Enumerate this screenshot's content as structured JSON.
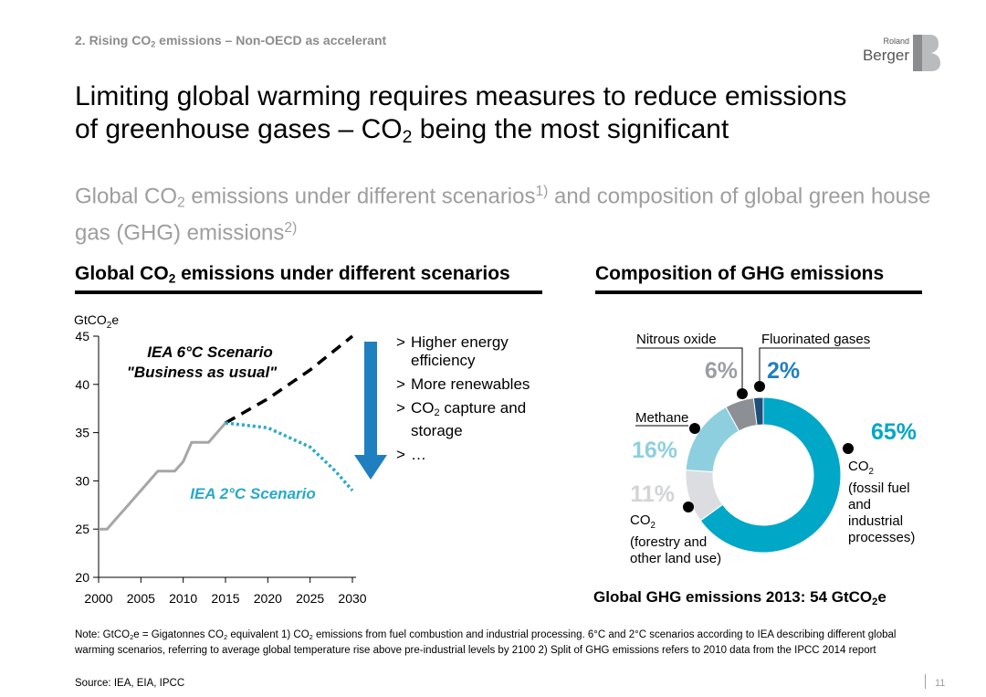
{
  "header": {
    "section_pre": "2. Rising CO",
    "section_sub": "2",
    "section_post": " emissions – Non-OECD as accelerant",
    "logo_line1": "Roland",
    "logo_line2": "Berger",
    "title_line1": "Limiting global warming requires measures to reduce emissions",
    "title_line2_pre": "of greenhouse gases – CO",
    "title_line2_sub": "2",
    "title_line2_post": " being the most significant",
    "subtitle_pre": "Global CO",
    "subtitle_sub": "2",
    "subtitle_mid": " emissions under different scenarios",
    "subtitle_sup1": "1)",
    "subtitle_post": " and composition of global green house gas (GHG) emissions",
    "subtitle_sup2": "2)"
  },
  "left_panel": {
    "title_pre": "Global CO",
    "title_sub": "2",
    "title_post": " emissions under different scenarios",
    "bullets": [
      {
        "marker": ">",
        "pre": "Higher energy efficiency",
        "sub": "",
        "post": ""
      },
      {
        "marker": ">",
        "pre": "More renewables",
        "sub": "",
        "post": ""
      },
      {
        "marker": ">",
        "pre": "CO",
        "sub": "2",
        "post": " capture and storage"
      },
      {
        "marker": ">",
        "pre": "…",
        "sub": "",
        "post": ""
      }
    ]
  },
  "right_panel": {
    "title": "Composition of GHG emissions",
    "total_pre": "Global GHG emissions 2013: 54 GtCO",
    "total_sub": "2",
    "total_post": "e"
  },
  "chart_data": [
    {
      "type": "line",
      "ylabel_pre": "GtCO",
      "ylabel_sub": "2",
      "ylabel_post": "e",
      "xlim": [
        2000,
        2030
      ],
      "ylim": [
        20,
        45
      ],
      "xticks": [
        2000,
        2005,
        2010,
        2015,
        2020,
        2025,
        2030
      ],
      "yticks": [
        20,
        25,
        30,
        35,
        40,
        45
      ],
      "series": [
        {
          "style": "solid",
          "color": "#a6a6a6",
          "points": [
            [
              2000,
              25
            ],
            [
              2001,
              25
            ],
            [
              2002,
              26
            ],
            [
              2003,
              27
            ],
            [
              2004,
              28
            ],
            [
              2005,
              29
            ],
            [
              2006,
              30
            ],
            [
              2007,
              31
            ],
            [
              2008,
              31
            ],
            [
              2009,
              31
            ],
            [
              2010,
              32
            ],
            [
              2011,
              34
            ],
            [
              2012,
              34
            ],
            [
              2013,
              34
            ],
            [
              2014,
              35
            ],
            [
              2015,
              36
            ]
          ]
        },
        {
          "name": "IEA 6°C Scenario \"Business as usual\"",
          "style": "dashed",
          "color": "#000000",
          "points": [
            [
              2015,
              36
            ],
            [
              2020,
              38.5
            ],
            [
              2025,
              41.5
            ],
            [
              2030,
              45
            ]
          ]
        },
        {
          "name": "IEA 2°C Scenario",
          "style": "dotted",
          "color": "#29a9c9",
          "points": [
            [
              2015,
              36
            ],
            [
              2020,
              35.5
            ],
            [
              2025,
              33.5
            ],
            [
              2028,
              31
            ],
            [
              2030,
              29
            ]
          ]
        }
      ],
      "annotations": {
        "scenario_6c_line1": "IEA 6°C Scenario",
        "scenario_6c_line2": "\"Business as usual\"",
        "scenario_2c": "IEA 2°C Scenario"
      },
      "colors": {
        "arrow": "#1f7fc0",
        "scenario_6c_text": "#000000",
        "scenario_2c_text": "#29a9c9"
      }
    },
    {
      "type": "pie",
      "donut": true,
      "slices": [
        {
          "label": "CO2 (fossil fuel and industrial processes)",
          "value": 65,
          "color": "#00a7c6"
        },
        {
          "label": "CO2 (forestry and other land use)",
          "value": 11,
          "color": "#dcdde0"
        },
        {
          "label": "Methane",
          "value": 16,
          "color": "#8ecfdf"
        },
        {
          "label": "Nitrous oxide",
          "value": 6,
          "color": "#8c8f94"
        },
        {
          "label": "Fluorinated gases",
          "value": 2,
          "color": "#1f4e79"
        }
      ],
      "labels": {
        "co2_fossil_pct": "65%",
        "co2_fossil_name_pre": "CO",
        "co2_fossil_name_sub": "2",
        "co2_fossil_desc": [
          "(fossil fuel",
          "and",
          "industrial",
          "processes)"
        ],
        "co2_forestry_pct": "11%",
        "co2_forestry_name_pre": "CO",
        "co2_forestry_name_sub": "2",
        "co2_forestry_desc": [
          "(forestry and",
          "other land use)"
        ],
        "methane_pct": "16%",
        "methane_name": "Methane",
        "nitrous_pct": "6%",
        "nitrous_name": "Nitrous oxide",
        "fluorinated_pct": "2%",
        "fluorinated_name": "Fluorinated gases"
      },
      "colors": {
        "pct_fossil": "#00a7c6",
        "pct_forestry": "#d3d4d7",
        "pct_methane": "#8ecfdf",
        "pct_nitrous": "#9b9ea3",
        "pct_fluorinated": "#1f7fc0"
      }
    }
  ],
  "footer": {
    "note_pre": "Note: GtCO",
    "note_sub1": "2",
    "note_mid1": "e = Gigatonnes CO",
    "note_sub2": "2",
    "note_mid2": " equivalent  1) CO",
    "note_sub3": "2",
    "note_mid3": " emissions from fuel combustion and industrial processing. 6°C and 2°C scenarios according to IEA describing different global warming scenarios, referring to average global temperature rise above pre-industrial levels by 2100  2) Split of GHG emissions refers to 2010 data from the IPCC 2014 report",
    "source": "Source: IEA, EIA, IPCC",
    "page_number": "11"
  }
}
